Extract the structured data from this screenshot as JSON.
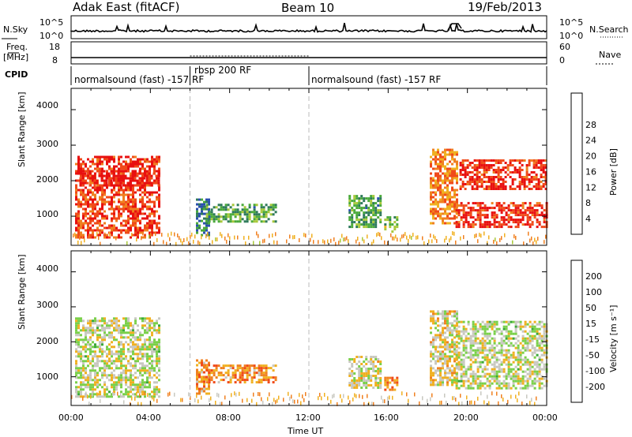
{
  "header": {
    "title": "Adak East (fitACF)",
    "beam": "Beam 10",
    "date": "19/Feb/2013"
  },
  "panels": {
    "nsky": {
      "label": "N.Sky",
      "tick_top": "10^5",
      "tick_bottom": "10^0",
      "right_label": "N.Search",
      "right_tick_top": "10^5",
      "right_tick_bottom": "10^0"
    },
    "freq": {
      "label_line1": "Freq.",
      "label_line2": "[MHz]",
      "tick_top": "18",
      "tick_bottom": "8",
      "right_label": "Nave",
      "right_tick_top": "60",
      "right_tick_bottom": "0"
    },
    "cpid": {
      "label": "CPID",
      "segments": [
        {
          "text": "normalsound (fast) -157 RF",
          "start": "00:00",
          "end": "06:00"
        },
        {
          "text": "rbsp 200 RF",
          "start": "06:00",
          "end": "12:00"
        },
        {
          "text": "normalsound (fast) -157 RF",
          "start": "12:00",
          "end": "24:00"
        }
      ]
    }
  },
  "chart_data": [
    {
      "type": "heatmap",
      "name": "power",
      "ylabel": "Slant Range [km]",
      "ylim": [
        180,
        4600
      ],
      "yticks": [
        1000,
        2000,
        3000,
        4000
      ],
      "xlim": [
        "00:00",
        "24:00"
      ],
      "colorbar_label": "Power [dB]",
      "colorbar_ticks": [
        "4",
        "8",
        "12",
        "16",
        "20",
        "24",
        "28"
      ],
      "colorbar_colors": [
        "#1a1aff",
        "#2a4fb0",
        "#2e7a5a",
        "#4aaa3a",
        "#a8c83a",
        "#f0b020",
        "#f08020",
        "#f04a1a",
        "#e81010"
      ],
      "regions": [
        {
          "t0": 0.2,
          "t1": 4.4,
          "r0": 400,
          "r1": 2700,
          "level": 0.9
        },
        {
          "t0": 0.3,
          "t1": 4.4,
          "r0": 1900,
          "r1": 2300,
          "level": 1.0
        },
        {
          "t0": 6.3,
          "t1": 7.0,
          "r0": 500,
          "r1": 1500,
          "level": 0.25
        },
        {
          "t0": 6.8,
          "t1": 10.3,
          "r0": 850,
          "r1": 1350,
          "level": 0.35
        },
        {
          "t0": 14.0,
          "t1": 15.6,
          "r0": 700,
          "r1": 1600,
          "level": 0.35
        },
        {
          "t0": 15.8,
          "t1": 16.5,
          "r0": 600,
          "r1": 1000,
          "level": 0.45
        },
        {
          "t0": 18.1,
          "t1": 19.5,
          "r0": 800,
          "r1": 2900,
          "level": 0.75
        },
        {
          "t0": 19.4,
          "t1": 24.0,
          "r0": 700,
          "r1": 1400,
          "level": 0.95
        },
        {
          "t0": 19.6,
          "t1": 24.0,
          "r0": 1800,
          "r1": 2600,
          "level": 0.95
        }
      ]
    },
    {
      "type": "heatmap",
      "name": "velocity",
      "ylabel": "Slant Range [km]",
      "ylim": [
        180,
        4600
      ],
      "yticks": [
        1000,
        2000,
        3000,
        4000
      ],
      "xlim": [
        "00:00",
        "24:00"
      ],
      "xticks": [
        "00:00",
        "04:00",
        "08:00",
        "12:00",
        "16:00",
        "20:00",
        "00:00"
      ],
      "xlabel": "Time UT",
      "colorbar_label": "Velocity [m s⁻¹]",
      "colorbar_ticks": [
        "200",
        "100",
        "50",
        "15",
        "-15",
        "-50",
        "-100",
        "-200"
      ],
      "colorbar_colors": [
        "#2a3aa8",
        "#2e6a5a",
        "#3aa83a",
        "#7ad04a",
        "#c8c8c0",
        "#f0b020",
        "#f08020",
        "#f04a1a",
        "#e81010"
      ],
      "regions": [
        {
          "t0": 0.2,
          "t1": 4.4,
          "r0": 400,
          "r1": 2700,
          "level": 0.48
        },
        {
          "t0": 6.3,
          "t1": 7.0,
          "r0": 500,
          "r1": 1500,
          "level": 0.7
        },
        {
          "t0": 6.8,
          "t1": 10.3,
          "r0": 850,
          "r1": 1350,
          "level": 0.72
        },
        {
          "t0": 14.0,
          "t1": 15.6,
          "r0": 700,
          "r1": 1600,
          "level": 0.52
        },
        {
          "t0": 15.8,
          "t1": 16.5,
          "r0": 600,
          "r1": 1000,
          "level": 0.75
        },
        {
          "t0": 18.1,
          "t1": 19.5,
          "r0": 800,
          "r1": 2900,
          "level": 0.55
        },
        {
          "t0": 19.4,
          "t1": 24.0,
          "r0": 700,
          "r1": 2600,
          "level": 0.48
        }
      ]
    }
  ]
}
